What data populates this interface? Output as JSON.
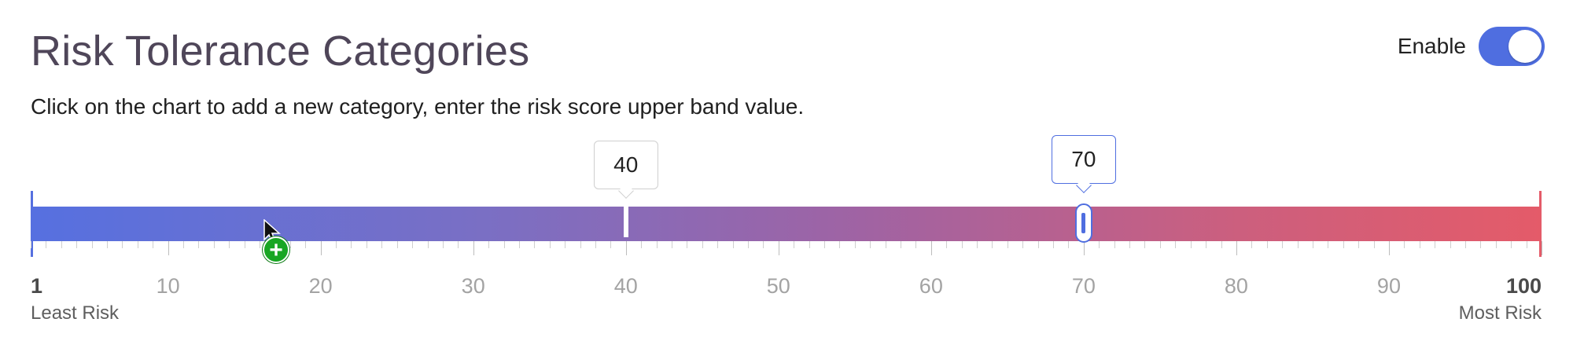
{
  "header": {
    "title": "Risk Tolerance Categories",
    "instructions": "Click on the chart to add a new category, enter the risk score upper band value.",
    "toggle": {
      "label": "Enable",
      "state": "on",
      "color": "#4f6ee0"
    }
  },
  "slider": {
    "min": 1,
    "max": 100,
    "min_label": "1",
    "max_label": "100",
    "tick_labels": [
      "10",
      "20",
      "30",
      "40",
      "50",
      "60",
      "70",
      "80",
      "90"
    ],
    "tick_values": [
      10,
      20,
      30,
      40,
      50,
      60,
      70,
      80,
      90
    ],
    "least_label": "Least Risk",
    "most_label": "Most Risk",
    "gradient_colors": {
      "start": "#5670e0",
      "end": "#e45b69"
    },
    "markers": [
      {
        "value": 40,
        "label": "40",
        "selected": false
      },
      {
        "value": 70,
        "label": "70",
        "selected": true
      }
    ]
  },
  "cursor": {
    "icon": "add-cursor-icon",
    "symbol": "+",
    "color": "#18a623"
  }
}
